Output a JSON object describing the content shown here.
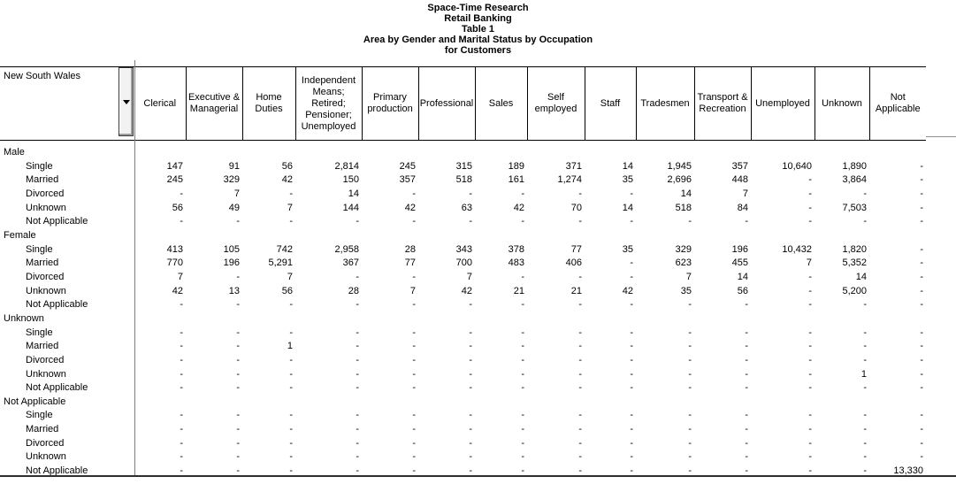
{
  "title": {
    "lines": [
      "Space-Time Research",
      "Retail Banking",
      "Table 1",
      "Area by Gender and Marital Status by Occupation",
      "for Customers"
    ]
  },
  "colors": {
    "text": "#000000",
    "background": "#ffffff",
    "button_face": "#f2f2f2",
    "grid_line": "#000000",
    "divider_line": "#7d7d7d"
  },
  "table": {
    "area_label": "New South Wales",
    "columns": [
      "Clerical",
      "Executive & Managerial",
      "Home Duties",
      "Independent Means; Retired; Pensioner; Unemployed",
      "Primary production",
      "Professional",
      "Sales",
      "Self employed",
      "Staff",
      "Tradesmen",
      "Transport & Recreation",
      "Unemployed",
      "Unknown",
      "Not Applicable"
    ],
    "sections": [
      {
        "label": "Male",
        "rows": [
          {
            "label": "Single",
            "values": [
              "147",
              "91",
              "56",
              "2,814",
              "245",
              "315",
              "189",
              "371",
              "14",
              "1,945",
              "357",
              "10,640",
              "1,890",
              "-"
            ]
          },
          {
            "label": "Married",
            "values": [
              "245",
              "329",
              "42",
              "150",
              "357",
              "518",
              "161",
              "1,274",
              "35",
              "2,696",
              "448",
              "-",
              "3,864",
              "-"
            ]
          },
          {
            "label": "Divorced",
            "values": [
              "-",
              "7",
              "-",
              "14",
              "-",
              "-",
              "-",
              "-",
              "-",
              "14",
              "7",
              "-",
              "-",
              "-"
            ]
          },
          {
            "label": "Unknown",
            "values": [
              "56",
              "49",
              "7",
              "144",
              "42",
              "63",
              "42",
              "70",
              "14",
              "518",
              "84",
              "-",
              "7,503",
              "-"
            ]
          },
          {
            "label": "Not Applicable",
            "values": [
              "-",
              "-",
              "-",
              "-",
              "-",
              "-",
              "-",
              "-",
              "-",
              "-",
              "-",
              "-",
              "-",
              "-"
            ]
          }
        ]
      },
      {
        "label": "Female",
        "rows": [
          {
            "label": "Single",
            "values": [
              "413",
              "105",
              "742",
              "2,958",
              "28",
              "343",
              "378",
              "77",
              "35",
              "329",
              "196",
              "10,432",
              "1,820",
              "-"
            ]
          },
          {
            "label": "Married",
            "values": [
              "770",
              "196",
              "5,291",
              "367",
              "77",
              "700",
              "483",
              "406",
              "-",
              "623",
              "455",
              "7",
              "5,352",
              "-"
            ]
          },
          {
            "label": "Divorced",
            "values": [
              "7",
              "-",
              "7",
              "-",
              "-",
              "7",
              "-",
              "-",
              "-",
              "7",
              "14",
              "-",
              "14",
              "-"
            ]
          },
          {
            "label": "Unknown",
            "values": [
              "42",
              "13",
              "56",
              "28",
              "7",
              "42",
              "21",
              "21",
              "42",
              "35",
              "56",
              "-",
              "5,200",
              "-"
            ]
          },
          {
            "label": "Not Applicable",
            "values": [
              "-",
              "-",
              "-",
              "-",
              "-",
              "-",
              "-",
              "-",
              "-",
              "-",
              "-",
              "-",
              "-",
              "-"
            ]
          }
        ]
      },
      {
        "label": "Unknown",
        "rows": [
          {
            "label": "Single",
            "values": [
              "-",
              "-",
              "-",
              "-",
              "-",
              "-",
              "-",
              "-",
              "-",
              "-",
              "-",
              "-",
              "-",
              "-"
            ]
          },
          {
            "label": "Married",
            "values": [
              "-",
              "-",
              "1",
              "-",
              "-",
              "-",
              "-",
              "-",
              "-",
              "-",
              "-",
              "-",
              "-",
              "-"
            ]
          },
          {
            "label": "Divorced",
            "values": [
              "-",
              "-",
              "-",
              "-",
              "-",
              "-",
              "-",
              "-",
              "-",
              "-",
              "-",
              "-",
              "-",
              "-"
            ]
          },
          {
            "label": "Unknown",
            "values": [
              "-",
              "-",
              "-",
              "-",
              "-",
              "-",
              "-",
              "-",
              "-",
              "-",
              "-",
              "-",
              "1",
              "-"
            ]
          },
          {
            "label": "Not Applicable",
            "values": [
              "-",
              "-",
              "-",
              "-",
              "-",
              "-",
              "-",
              "-",
              "-",
              "-",
              "-",
              "-",
              "-",
              "-"
            ]
          }
        ]
      },
      {
        "label": "Not Applicable",
        "rows": [
          {
            "label": "Single",
            "values": [
              "-",
              "-",
              "-",
              "-",
              "-",
              "-",
              "-",
              "-",
              "-",
              "-",
              "-",
              "-",
              "-",
              "-"
            ]
          },
          {
            "label": "Married",
            "values": [
              "-",
              "-",
              "-",
              "-",
              "-",
              "-",
              "-",
              "-",
              "-",
              "-",
              "-",
              "-",
              "-",
              "-"
            ]
          },
          {
            "label": "Divorced",
            "values": [
              "-",
              "-",
              "-",
              "-",
              "-",
              "-",
              "-",
              "-",
              "-",
              "-",
              "-",
              "-",
              "-",
              "-"
            ]
          },
          {
            "label": "Unknown",
            "values": [
              "-",
              "-",
              "-",
              "-",
              "-",
              "-",
              "-",
              "-",
              "-",
              "-",
              "-",
              "-",
              "-",
              "-"
            ]
          },
          {
            "label": "Not Applicable",
            "values": [
              "-",
              "-",
              "-",
              "-",
              "-",
              "-",
              "-",
              "-",
              "-",
              "-",
              "-",
              "-",
              "-",
              "13,330"
            ]
          }
        ]
      }
    ]
  }
}
